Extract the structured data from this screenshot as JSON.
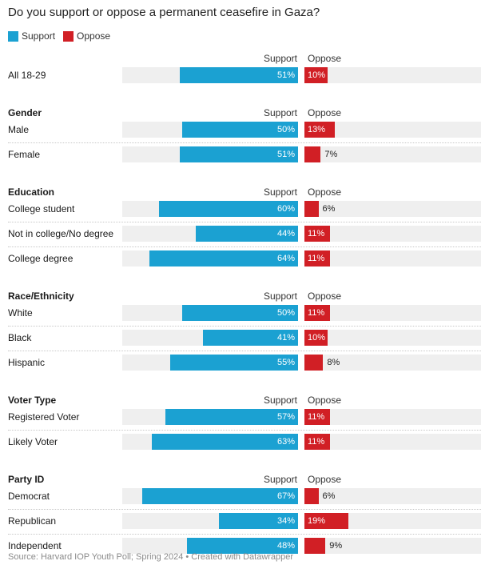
{
  "chart_data": {
    "type": "bar",
    "title": "Do you support or oppose a permanent ceasefire in Gaza?",
    "legend": [
      {
        "name": "Support",
        "color": "#1ba1d2"
      },
      {
        "name": "Oppose",
        "color": "#d11f25"
      }
    ],
    "column_headers": {
      "support": "Support",
      "oppose": "Oppose"
    },
    "value_suffix": "%",
    "xlim": [
      0,
      100
    ],
    "groups": [
      {
        "name": "",
        "rows": [
          {
            "label": "All 18-29",
            "support": 51,
            "oppose": 10
          }
        ]
      },
      {
        "name": "Gender",
        "rows": [
          {
            "label": "Male",
            "support": 50,
            "oppose": 13
          },
          {
            "label": "Female",
            "support": 51,
            "oppose": 7
          }
        ]
      },
      {
        "name": "Education",
        "rows": [
          {
            "label": "College student",
            "support": 60,
            "oppose": 6
          },
          {
            "label": "Not in college/No degree",
            "support": 44,
            "oppose": 11
          },
          {
            "label": "College degree",
            "support": 64,
            "oppose": 11
          }
        ]
      },
      {
        "name": "Race/Ethnicity",
        "rows": [
          {
            "label": "White",
            "support": 50,
            "oppose": 11
          },
          {
            "label": "Black",
            "support": 41,
            "oppose": 10
          },
          {
            "label": "Hispanic",
            "support": 55,
            "oppose": 8
          }
        ]
      },
      {
        "name": "Voter Type",
        "rows": [
          {
            "label": "Registered Voter",
            "support": 57,
            "oppose": 11
          },
          {
            "label": "Likely Voter",
            "support": 63,
            "oppose": 11
          }
        ]
      },
      {
        "name": "Party ID",
        "rows": [
          {
            "label": "Democrat",
            "support": 67,
            "oppose": 6
          },
          {
            "label": "Republican",
            "support": 34,
            "oppose": 19
          },
          {
            "label": "Independent",
            "support": 48,
            "oppose": 9
          }
        ]
      }
    ],
    "source": "Source: Harvard IOP Youth Poll; Spring 2024 • Created with Datawrapper"
  }
}
